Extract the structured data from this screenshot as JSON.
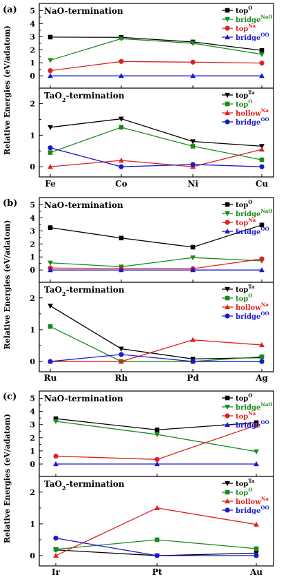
{
  "chart_data": [
    {
      "type": "line",
      "panel_label": "(a)",
      "ylabel": "Relative Energies (eV/adatom)",
      "categories": [
        "Fe",
        "Co",
        "Ni",
        "Cu"
      ],
      "subplots": [
        {
          "title": {
            "main": "NaO-termination",
            "sub": ""
          },
          "ylim": [
            -0.5,
            5.5
          ],
          "yticks": [
            0,
            1,
            2,
            3,
            4,
            5
          ],
          "series": [
            {
              "name": "top",
              "sup": "O",
              "color": "#000000",
              "marker": "square",
              "values": [
                2.97,
                2.95,
                2.6,
                1.95
              ]
            },
            {
              "name": "bridge",
              "sup": "NaO",
              "color": "#1a8a1a",
              "marker": "triangle-down",
              "values": [
                1.2,
                2.85,
                2.5,
                1.65
              ]
            },
            {
              "name": "top",
              "sup": "Na",
              "color": "#e02020",
              "marker": "circle",
              "values": [
                0.4,
                1.1,
                1.05,
                0.98
              ]
            },
            {
              "name": "bridge",
              "sup": "OO",
              "color": "#1a1acc",
              "marker": "triangle-up",
              "values": [
                0,
                0,
                0,
                0
              ]
            }
          ]
        },
        {
          "title": {
            "main": "TaO",
            "sub": "2",
            "rest": "-termination"
          },
          "ylim": [
            -0.2,
            2.5
          ],
          "yticks": [
            0,
            1,
            2
          ],
          "series": [
            {
              "name": "top",
              "sup": "Ta",
              "color": "#000000",
              "marker": "triangle-down",
              "values": [
                1.25,
                1.52,
                0.8,
                0.65
              ]
            },
            {
              "name": "top",
              "sup": "O",
              "color": "#1a8a1a",
              "marker": "square",
              "values": [
                0.45,
                1.25,
                0.65,
                0.22
              ]
            },
            {
              "name": "hollow",
              "sup": "Na",
              "color": "#e02020",
              "marker": "triangle-up",
              "values": [
                0,
                0.2,
                0,
                0.55
              ]
            },
            {
              "name": "bridge",
              "sup": "OO",
              "color": "#1a1acc",
              "marker": "circle",
              "values": [
                0.6,
                0,
                0.07,
                0
              ]
            }
          ]
        }
      ]
    },
    {
      "type": "line",
      "panel_label": "(b)",
      "ylabel": "Relative Energies (eV/adatom)",
      "categories": [
        "Ru",
        "Rh",
        "Pd",
        "Ag"
      ],
      "subplots": [
        {
          "title": {
            "main": "NaO-termination",
            "sub": ""
          },
          "ylim": [
            -0.5,
            5.5
          ],
          "yticks": [
            0,
            1,
            2,
            3,
            4,
            5
          ],
          "series": [
            {
              "name": "top",
              "sup": "O",
              "color": "#000000",
              "marker": "square",
              "values": [
                3.25,
                2.45,
                1.75,
                3.45
              ]
            },
            {
              "name": "bridge",
              "sup": "NaO",
              "color": "#1a8a1a",
              "marker": "triangle-down",
              "values": [
                0.55,
                0.25,
                0.95,
                0.7
              ]
            },
            {
              "name": "top",
              "sup": "Na",
              "color": "#e02020",
              "marker": "circle",
              "values": [
                0.15,
                0.1,
                0.1,
                0.85
              ]
            },
            {
              "name": "bridge",
              "sup": "OO",
              "color": "#1a1acc",
              "marker": "triangle-up",
              "values": [
                0,
                0,
                0,
                0
              ]
            }
          ]
        },
        {
          "title": {
            "main": "TaO",
            "sub": "2",
            "rest": "-termination"
          },
          "ylim": [
            -0.2,
            2.5
          ],
          "yticks": [
            0,
            1,
            2
          ],
          "series": [
            {
              "name": "top",
              "sup": "Ta",
              "color": "#000000",
              "marker": "triangle-down",
              "values": [
                1.75,
                0.4,
                0.08,
                0.12
              ]
            },
            {
              "name": "top",
              "sup": "O",
              "color": "#1a8a1a",
              "marker": "square",
              "values": [
                1.1,
                0,
                0,
                0.15
              ]
            },
            {
              "name": "hollow",
              "sup": "Na",
              "color": "#e02020",
              "marker": "triangle-up",
              "values": [
                0,
                0,
                0.68,
                0.52
              ]
            },
            {
              "name": "bridge",
              "sup": "OO",
              "color": "#1a1acc",
              "marker": "circle",
              "values": [
                0,
                0.22,
                0,
                0
              ]
            }
          ]
        }
      ]
    },
    {
      "type": "line",
      "panel_label": "(c)",
      "ylabel": "Relative Energies (eV/adatom)",
      "categories": [
        "Ir",
        "Pt",
        "Au"
      ],
      "subplots": [
        {
          "title": {
            "main": "NaO-termination",
            "sub": ""
          },
          "ylim": [
            -0.5,
            5.5
          ],
          "yticks": [
            0,
            1,
            2,
            3,
            4,
            5
          ],
          "series": [
            {
              "name": "top",
              "sup": "O",
              "color": "#000000",
              "marker": "square",
              "values": [
                3.45,
                2.6,
                3.15
              ]
            },
            {
              "name": "bridge",
              "sup": "NaO",
              "color": "#1a8a1a",
              "marker": "triangle-down",
              "values": [
                3.25,
                2.25,
                0.95
              ]
            },
            {
              "name": "top",
              "sup": "Na",
              "color": "#e02020",
              "marker": "circle",
              "values": [
                0.6,
                0.35,
                2.95
              ]
            },
            {
              "name": "bridge",
              "sup": "OO",
              "color": "#1a1acc",
              "marker": "triangle-up",
              "values": [
                0,
                0,
                0
              ]
            }
          ]
        },
        {
          "title": {
            "main": "TaO",
            "sub": "2",
            "rest": "-termination"
          },
          "ylim": [
            -0.2,
            2.5
          ],
          "yticks": [
            0,
            1,
            2
          ],
          "series": [
            {
              "name": "top",
              "sup": "Ta",
              "color": "#000000",
              "marker": "triangle-down",
              "values": [
                0.18,
                0,
                0.08
              ]
            },
            {
              "name": "top",
              "sup": "O",
              "color": "#1a8a1a",
              "marker": "square",
              "values": [
                0.2,
                0.5,
                0.22
              ]
            },
            {
              "name": "hollow",
              "sup": "Na",
              "color": "#e02020",
              "marker": "triangle-up",
              "values": [
                0,
                1.5,
                0.98
              ]
            },
            {
              "name": "bridge",
              "sup": "OO",
              "color": "#1a1acc",
              "marker": "circle",
              "values": [
                0.55,
                0,
                0
              ]
            }
          ]
        }
      ]
    }
  ]
}
